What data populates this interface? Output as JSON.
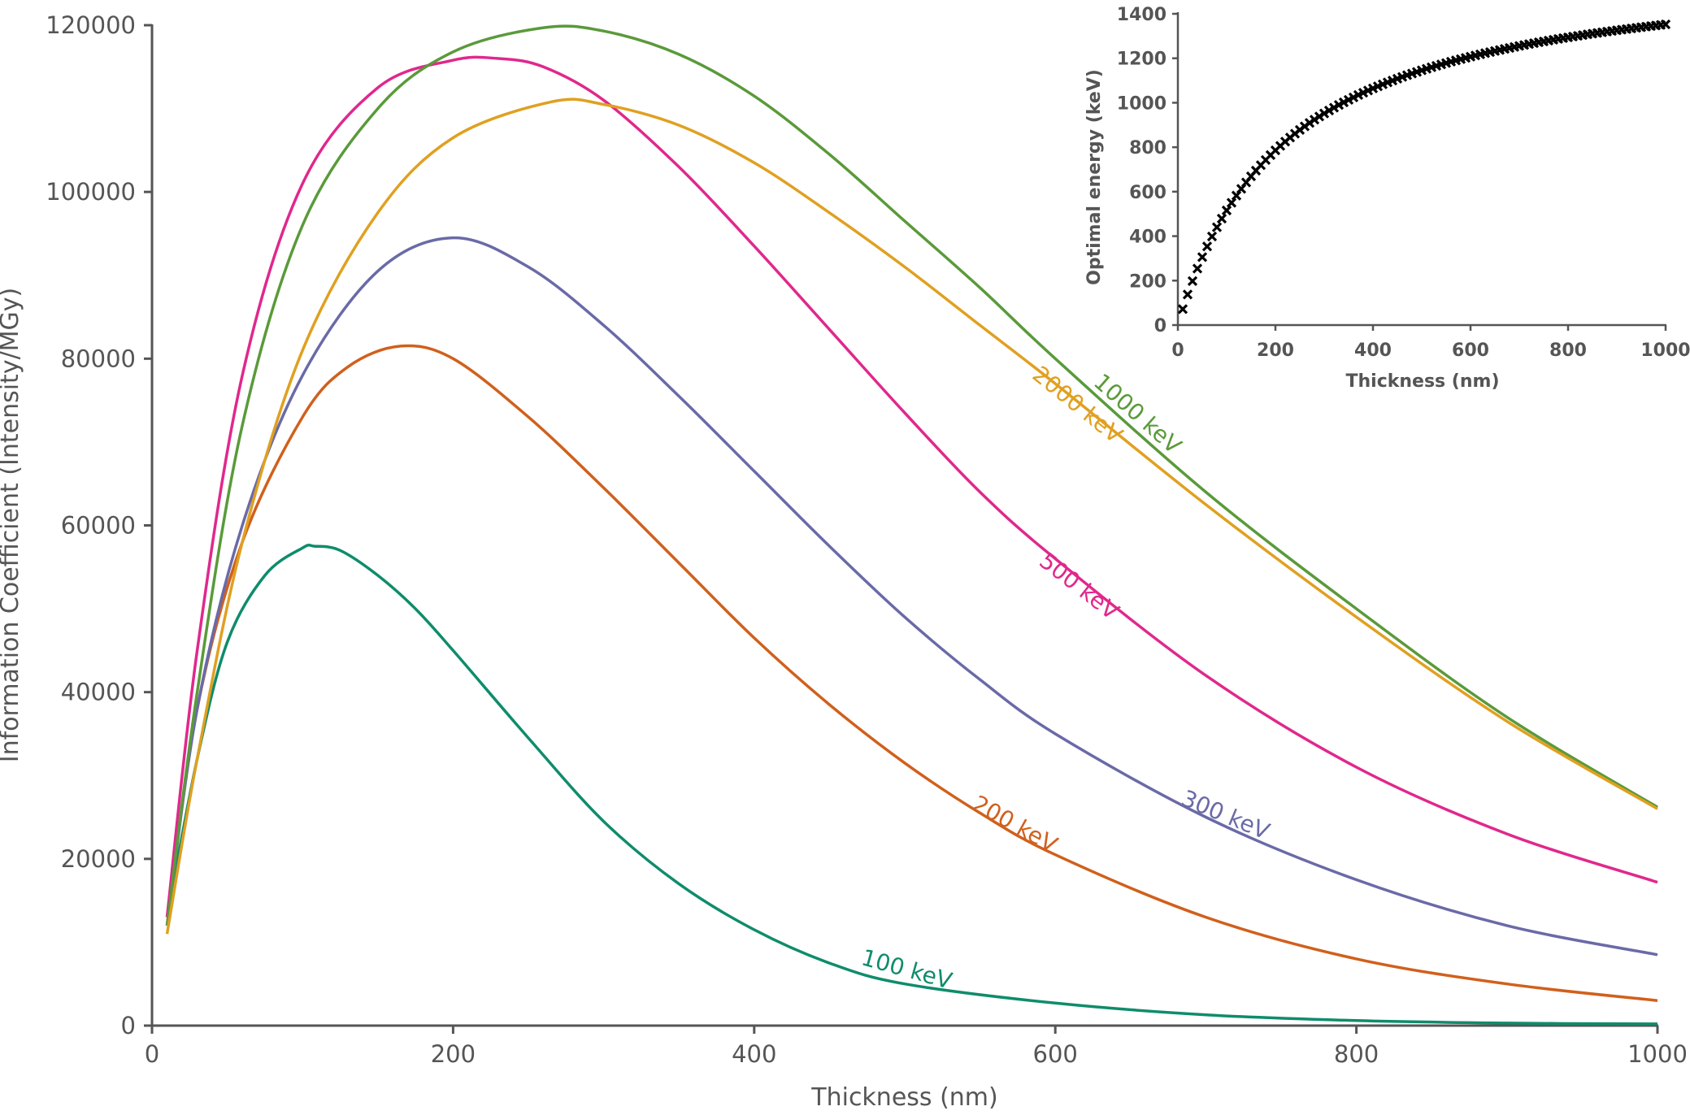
{
  "chart_data": [
    {
      "type": "line",
      "title": "",
      "xlabel": "Thickness (nm)",
      "ylabel": "Information Coefficient (Intensity/MGy)",
      "xlim": [
        0,
        1000
      ],
      "ylim": [
        0,
        120000
      ],
      "xticks": [
        "0",
        "200",
        "400",
        "600",
        "800",
        "1000"
      ],
      "yticks": [
        "0",
        "20000",
        "40000",
        "60000",
        "80000",
        "100000",
        "120000"
      ],
      "grid": false,
      "legend": "inline labels on curves",
      "series": [
        {
          "name": "100 keV",
          "color": "#0f8c6b",
          "x": [
            10,
            30,
            50,
            75,
            100,
            108,
            125,
            150,
            175,
            200,
            250,
            300,
            350,
            400,
            450,
            500,
            600,
            700,
            800,
            900,
            1000
          ],
          "y": [
            13000,
            32000,
            46000,
            54000,
            57300,
            57500,
            57000,
            54000,
            50000,
            45000,
            34500,
            24500,
            17000,
            11500,
            7500,
            5000,
            2700,
            1300,
            600,
            300,
            200
          ]
        },
        {
          "name": "200 keV",
          "color": "#d0601c",
          "x": [
            10,
            30,
            60,
            100,
            130,
            165,
            200,
            250,
            300,
            350,
            400,
            450,
            500,
            550,
            600,
            700,
            800,
            900,
            1000
          ],
          "y": [
            12000,
            38000,
            58000,
            73000,
            79000,
            81500,
            80000,
            73000,
            64500,
            55500,
            46500,
            38500,
            31500,
            25500,
            20500,
            13000,
            8000,
            5000,
            3000
          ]
        },
        {
          "name": "300 keV",
          "color": "#6a6aa8",
          "x": [
            10,
            30,
            60,
            100,
            150,
            200,
            250,
            300,
            350,
            400,
            450,
            500,
            550,
            600,
            700,
            800,
            900,
            1000
          ],
          "y": [
            12000,
            38000,
            60000,
            78000,
            90500,
            94500,
            91000,
            84000,
            75500,
            66500,
            57500,
            49000,
            41500,
            35000,
            25000,
            17500,
            12000,
            8500
          ]
        },
        {
          "name": "500 keV",
          "color": "#e0288c",
          "x": [
            10,
            30,
            60,
            100,
            150,
            200,
            230,
            260,
            300,
            350,
            400,
            450,
            500,
            550,
            600,
            700,
            800,
            900,
            1000
          ],
          "y": [
            13000,
            45000,
            78000,
            101000,
            112500,
            115800,
            116000,
            115000,
            111000,
            103000,
            93500,
            83500,
            73500,
            64000,
            56000,
            42000,
            31000,
            23000,
            17200
          ]
        },
        {
          "name": "1000 keV",
          "color": "#5a9a3a",
          "x": [
            10,
            30,
            60,
            100,
            150,
            200,
            260,
            300,
            350,
            400,
            450,
            500,
            550,
            600,
            700,
            800,
            900,
            1000
          ],
          "y": [
            12000,
            40000,
            72000,
            96000,
            110000,
            116800,
            119700,
            119300,
            116500,
            111500,
            104500,
            96500,
            88500,
            80000,
            64000,
            50000,
            37000,
            26200
          ]
        },
        {
          "name": "2000 keV",
          "color": "#e0a020",
          "x": [
            10,
            30,
            60,
            100,
            150,
            200,
            265,
            300,
            350,
            400,
            450,
            500,
            550,
            600,
            700,
            800,
            900,
            1000
          ],
          "y": [
            11000,
            32000,
            58000,
            81000,
            97500,
            106500,
            110800,
            110500,
            108000,
            103500,
            97500,
            91000,
            84000,
            77000,
            62500,
            49000,
            36500,
            26000
          ]
        }
      ]
    },
    {
      "type": "scatter",
      "title": "",
      "xlabel": "Thickness (nm)",
      "ylabel": "Optimal energy (keV)",
      "xlim": [
        0,
        1000
      ],
      "ylim": [
        0,
        1400
      ],
      "xticks": [
        "0",
        "200",
        "400",
        "600",
        "800",
        "1000"
      ],
      "yticks": [
        "0",
        "200",
        "400",
        "600",
        "800",
        "1000",
        "1200",
        "1400"
      ],
      "grid": false,
      "marker": "x",
      "marker_color": "#000000",
      "curve": {
        "ymax": 1650,
        "half_thickness": 220
      },
      "x_range": [
        10,
        1000
      ],
      "x_step": 10
    }
  ]
}
